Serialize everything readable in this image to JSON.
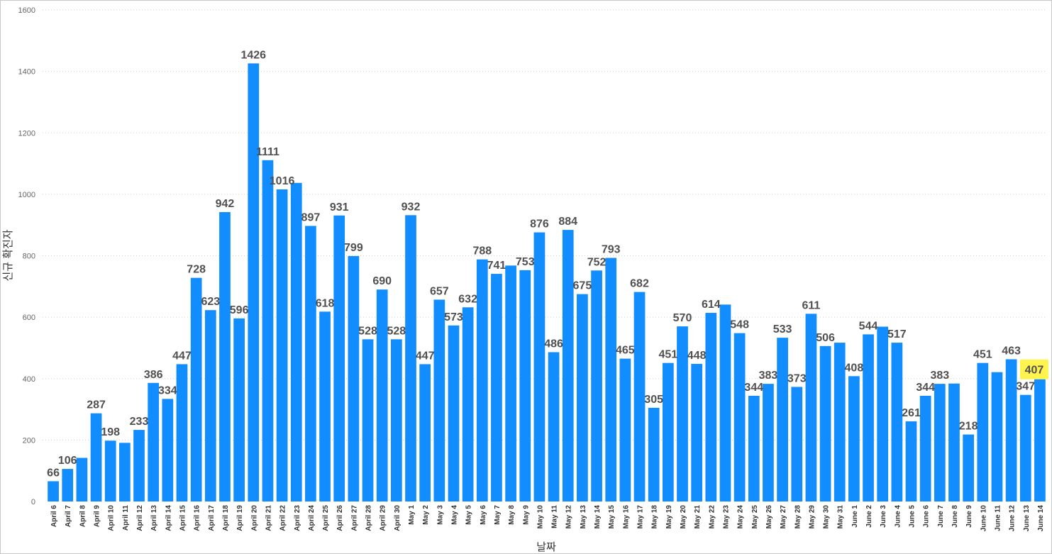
{
  "chart_data": {
    "type": "bar",
    "title": "",
    "xlabel": "날짜",
    "ylabel": "신규 확진자",
    "ylim": [
      0,
      1600
    ],
    "yticks": [
      0,
      200,
      400,
      600,
      800,
      1000,
      1200,
      1400,
      1600
    ],
    "grid": true,
    "bar_color": "#118DFF",
    "highlight_color": "#FFF44F",
    "highlighted_label": "407",
    "categories": [
      "April 6",
      "April 7",
      "April 8",
      "April 9",
      "April 10",
      "April 11",
      "April 12",
      "April 13",
      "April 14",
      "April 15",
      "April 16",
      "April 17",
      "April 18",
      "April 19",
      "April 20",
      "April 21",
      "April 22",
      "April 23",
      "April 24",
      "April 25",
      "April 26",
      "April 27",
      "April 28",
      "April 29",
      "April 30",
      "May 1",
      "May 2",
      "May 3",
      "May 4",
      "May 5",
      "May 6",
      "May 7",
      "May 8",
      "May 9",
      "May 10",
      "May 11",
      "May 12",
      "May 13",
      "May 14",
      "May 15",
      "May 16",
      "May 17",
      "May 18",
      "May 19",
      "May 20",
      "May 21",
      "May 22",
      "May 23",
      "May 24",
      "May 25",
      "May 26",
      "May 27",
      "May 28",
      "May 29",
      "May 30",
      "May 31",
      "June 1",
      "June 2",
      "June 3",
      "June 4",
      "June 5",
      "June 6",
      "June 7",
      "June 8",
      "June 9",
      "June 10",
      "June 11",
      "June 12",
      "June 13",
      "June 14"
    ],
    "values": [
      66,
      106,
      142,
      287,
      198,
      191,
      233,
      386,
      334,
      447,
      728,
      623,
      942,
      596,
      1426,
      1111,
      1016,
      1037,
      897,
      618,
      931,
      799,
      528,
      690,
      528,
      932,
      447,
      657,
      573,
      632,
      788,
      741,
      768,
      753,
      876,
      486,
      884,
      675,
      752,
      793,
      465,
      682,
      305,
      451,
      570,
      448,
      614,
      641,
      548,
      344,
      383,
      533,
      373,
      611,
      506,
      517,
      408,
      544,
      569,
      517,
      261,
      344,
      383,
      384,
      218,
      451,
      421,
      463,
      347,
      407
    ],
    "data_labels": [
      "66",
      "106",
      "",
      "287",
      "198",
      "",
      "233",
      "386",
      "334",
      "447",
      "728",
      "623",
      "942",
      "596",
      "1426",
      "1111",
      "1016",
      "",
      "897",
      "618",
      "931",
      "799",
      "528",
      "690",
      "528",
      "932",
      "447",
      "657",
      "573",
      "632",
      "788",
      "741",
      "",
      "753",
      "876",
      "486",
      "884",
      "675",
      "752",
      "793",
      "465",
      "682",
      "305",
      "451",
      "570",
      "448",
      "614",
      "",
      "548",
      "344",
      "383",
      "533",
      "373",
      "611",
      "506",
      "",
      "408",
      "544",
      "",
      "517",
      "261",
      "344",
      "383",
      "",
      "218",
      "451",
      "",
      "463",
      "347",
      "407"
    ]
  }
}
